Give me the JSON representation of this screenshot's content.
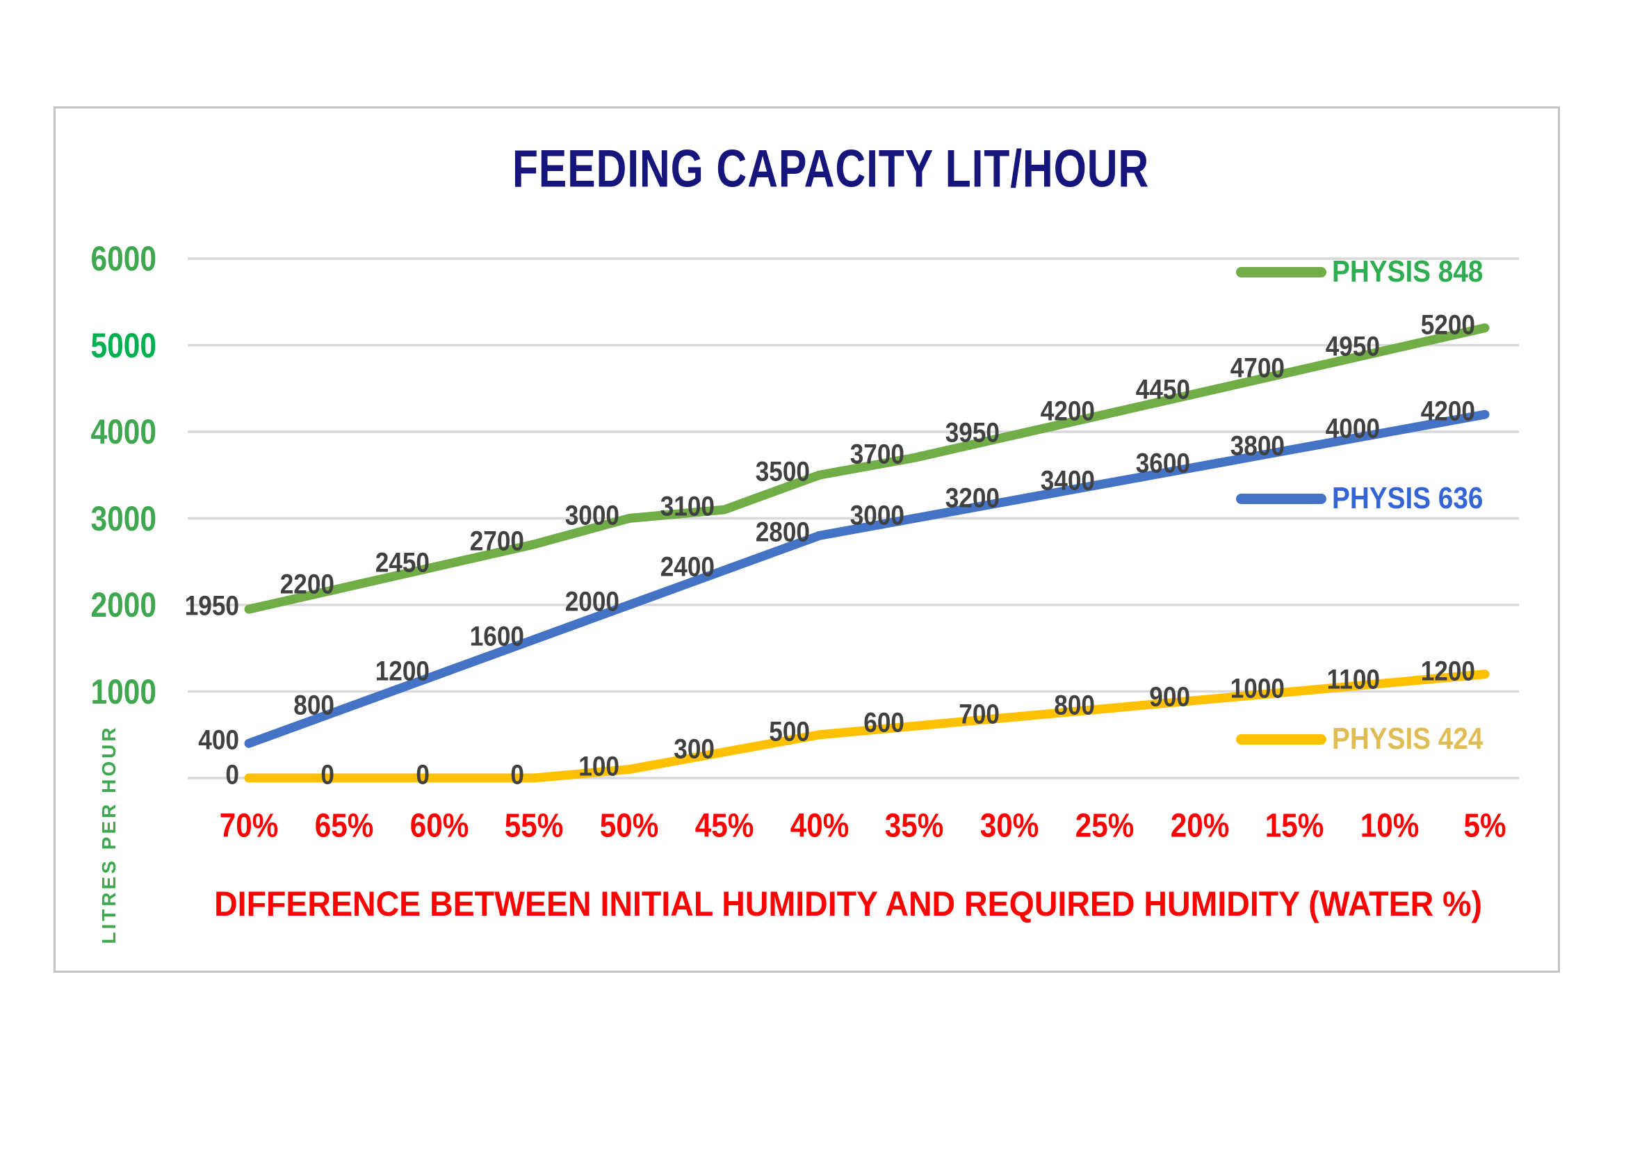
{
  "title": "FEEDING CAPACITY LIT/HOUR",
  "colors": {
    "title": "#16157b",
    "axis_red": "#ff0000",
    "data_label": "#404040",
    "gridline": "#d9d9d9",
    "chart_border": "#c4c4c4",
    "y_tick_green": "#3fa74f",
    "y_tick_accent": "#00b050"
  },
  "y_axis": {
    "title": "LITRES PER HOUR",
    "ticks": [
      "6000",
      "5000",
      "4000",
      "3000",
      "2000",
      "1000"
    ],
    "tick_colors": [
      "#3fa74f",
      "#00b050",
      "#3fa74f",
      "#3fa74f",
      "#3fa74f",
      "#3fa74f"
    ]
  },
  "x_axis": {
    "title": "DIFFERENCE BETWEEN INITIAL HUMIDITY AND REQUIRED HUMIDITY  (WATER %)"
  },
  "legend": [
    {
      "label": "PHYSIS 848",
      "text_color": "#2fae51",
      "swatch_color": "#70ad47"
    },
    {
      "label": "PHYSIS 636",
      "text_color": "#3465d5",
      "swatch_color": "#4472c4"
    },
    {
      "label": "PHYSIS 424",
      "text_color": "#e0bc55",
      "swatch_color": "#ffc000"
    }
  ],
  "chart_data": {
    "type": "line",
    "title": "FEEDING CAPACITY LIT/HOUR",
    "xlabel": "DIFFERENCE BETWEEN INITIAL HUMIDITY AND REQUIRED HUMIDITY  (WATER %)",
    "ylabel": "LITRES PER HOUR",
    "ylim": [
      0,
      6000
    ],
    "y_gridlines": [
      0,
      1000,
      2000,
      3000,
      4000,
      5000,
      6000
    ],
    "grid": true,
    "legend_position": "right-inside",
    "data_labels": "shown at every point",
    "categories": [
      "70%",
      "65%",
      "60%",
      "55%",
      "50%",
      "45%",
      "40%",
      "35%",
      "30%",
      "25%",
      "20%",
      "15%",
      "10%",
      "5%"
    ],
    "series": [
      {
        "name": "PHYSIS 848",
        "color": "#70ad47",
        "values": [
          1950,
          2200,
          2450,
          2700,
          3000,
          3100,
          3500,
          3700,
          3950,
          4200,
          4450,
          4700,
          4950,
          5200
        ]
      },
      {
        "name": "PHYSIS 636",
        "color": "#4472c4",
        "values": [
          400,
          800,
          1200,
          1600,
          2000,
          2400,
          2800,
          3000,
          3200,
          3400,
          3600,
          3800,
          4000,
          4200
        ]
      },
      {
        "name": "PHYSIS 424",
        "color": "#ffc000",
        "values": [
          0,
          0,
          0,
          0,
          100,
          300,
          500,
          600,
          700,
          800,
          900,
          1000,
          1100,
          1200
        ]
      }
    ]
  }
}
